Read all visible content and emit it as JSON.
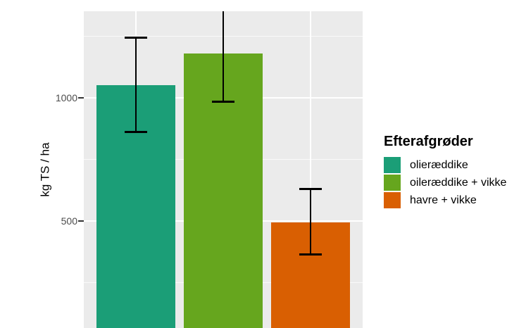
{
  "chart_data": {
    "type": "bar",
    "title": "",
    "ylabel": "kg TS / ha",
    "legend": {
      "title": "Efterafgrøder",
      "position": "right",
      "entries": [
        {
          "label": "olieræddike",
          "color": "#1b9e77"
        },
        {
          "label": "oileræddike + vikke",
          "color": "#66a61e"
        },
        {
          "label": "havre + vikke",
          "color": "#d95f02"
        }
      ]
    },
    "categories": [
      "olieræddike",
      "oileræddike + vikke",
      "havre + vikke"
    ],
    "series": [
      {
        "name": "kg TS / ha",
        "values": [
          1050,
          1180,
          495
        ],
        "error_lower": [
          860,
          985,
          365
        ],
        "error_upper": [
          1245,
          null,
          630
        ]
      }
    ],
    "bar_colors": [
      "#1b9e77",
      "#66a61e",
      "#d95f02"
    ],
    "y_axis": {
      "ticks": [
        1000,
        500
      ],
      "tick_labels": [
        "1000",
        "500"
      ],
      "major_gridlines": [
        500,
        1000
      ],
      "minor_gridlines": [
        250,
        750,
        1250
      ],
      "visible_range": [
        66,
        1351
      ]
    },
    "x_axis": {
      "labels_visible": false
    },
    "grid": true,
    "plot_background": "#ebebeb",
    "gridline_color": "#ffffff",
    "tick_color": "#333333",
    "tick_label_color": "#4d4d4d",
    "notes": "Chart is cropped: x-axis labels are below the visible area and the upper error limit of the second bar extends above the top edge."
  }
}
